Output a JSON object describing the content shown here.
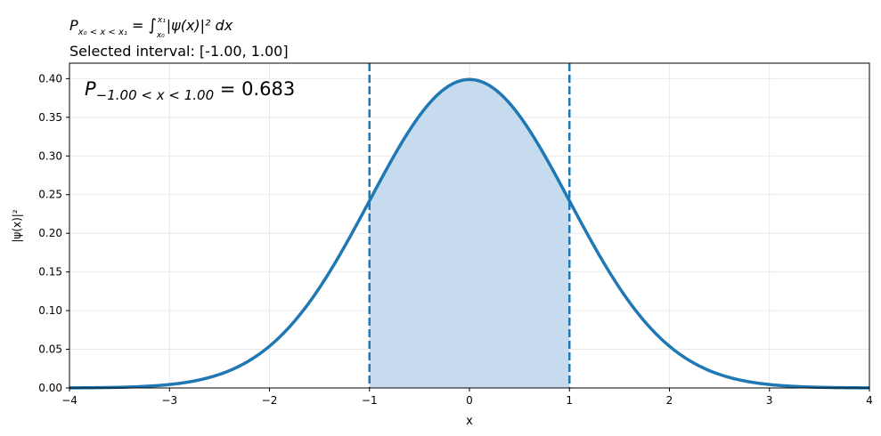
{
  "chart_data": {
    "type": "area",
    "title_line1": {
      "P": "P",
      "sub": "x₀ < x < x₁",
      "eq": " = ",
      "int": "∫",
      "upper": "x₁",
      "lower": "x₀",
      "body": "|ψ(x)|² dx"
    },
    "title_line2": "Selected interval: [-1.00, 1.00]",
    "annotation": {
      "P": "P",
      "sub": "−1.00 < x < 1.00",
      "value": " = 0.683"
    },
    "xlabel": "x",
    "ylabel": "|ψ(x)|²",
    "xlim": [
      -4,
      4
    ],
    "ylim": [
      0,
      0.42
    ],
    "x_ticks": [
      -4,
      -3,
      -2,
      -1,
      0,
      1,
      2,
      3,
      4
    ],
    "x_tick_labels": [
      "−4",
      "−3",
      "−2",
      "−1",
      "0",
      "1",
      "2",
      "3",
      "4"
    ],
    "y_ticks": [
      0,
      0.05,
      0.1,
      0.15,
      0.2,
      0.25,
      0.3,
      0.35,
      0.4
    ],
    "y_tick_labels": [
      "0.00",
      "0.05",
      "0.10",
      "0.15",
      "0.20",
      "0.25",
      "0.30",
      "0.35",
      "0.40"
    ],
    "interval": [
      -1.0,
      1.0
    ],
    "probability": 0.683,
    "series": [
      {
        "x": [
          -4,
          -3.5,
          -3,
          -2.5,
          -2,
          -1.5,
          -1,
          -0.5,
          0,
          0.5,
          1,
          1.5,
          2,
          2.5,
          3,
          3.5,
          4
        ],
        "y": [
          0.0001,
          0.0009,
          0.0044,
          0.0175,
          0.054,
          0.1295,
          0.242,
          0.3521,
          0.3989,
          0.3521,
          0.242,
          0.1295,
          0.054,
          0.0175,
          0.0044,
          0.0009,
          0.0001
        ]
      }
    ],
    "grid": true,
    "colors": {
      "line": "#1f77b4",
      "fill": "#c6dbed",
      "grid": "#e5e5e5"
    }
  }
}
